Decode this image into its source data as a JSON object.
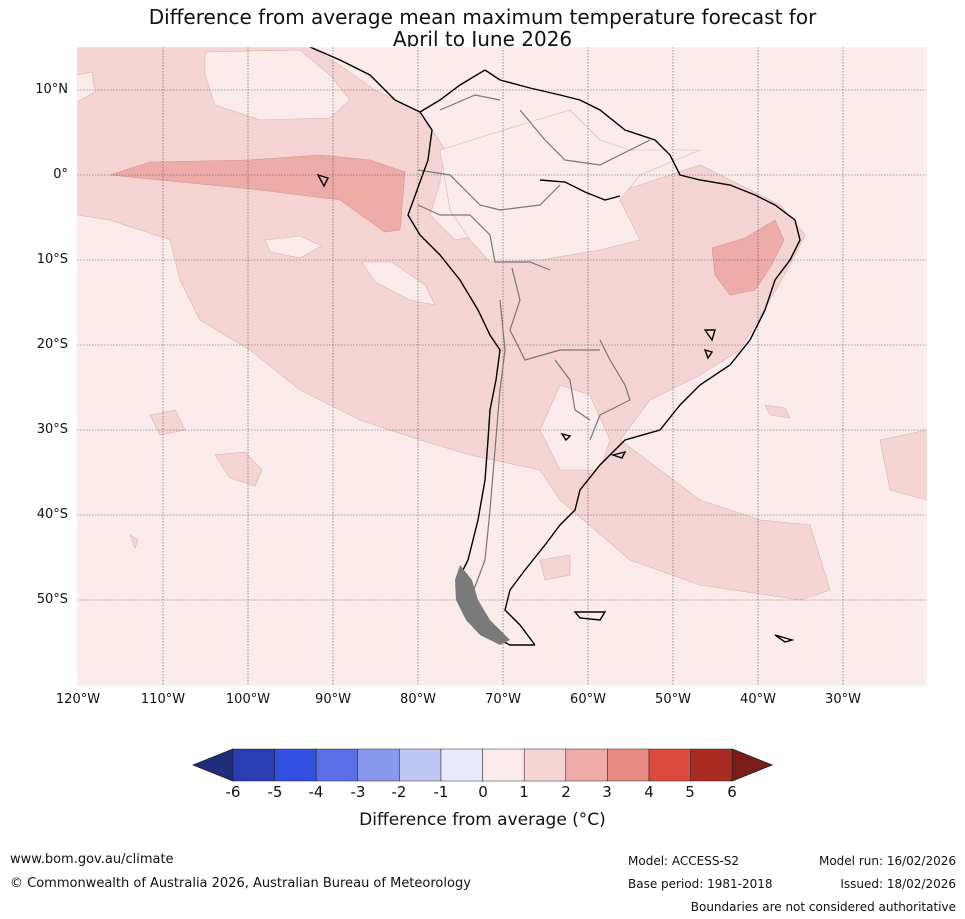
{
  "title": {
    "line1": "Difference from average mean maximum temperature forecast for",
    "line2": "April to June 2026"
  },
  "map": {
    "region": "South America",
    "latitude_labels": [
      "10°N",
      "0°",
      "10°S",
      "20°S",
      "30°S",
      "40°S",
      "50°S"
    ],
    "longitude_labels": [
      "120°W",
      "110°W",
      "100°W",
      "90°W",
      "80°W",
      "70°W",
      "60°W",
      "50°W",
      "40°W",
      "30°W"
    ],
    "dominant_anomaly_range": "0 to 1 °C with patches of 1 to 3 °C"
  },
  "colorbar": {
    "ticks": [
      "-6",
      "-5",
      "-4",
      "-3",
      "-2",
      "-1",
      "0",
      "1",
      "2",
      "3",
      "4",
      "5",
      "6"
    ],
    "colors": [
      "#1f2d7a",
      "#2a3eb1",
      "#3150e0",
      "#5a6fe6",
      "#8898ee",
      "#c0c7f5",
      "#e8ebfb",
      "#fbeceb",
      "#f5d5d3",
      "#edaca8",
      "#e88a82",
      "#dc4a3e",
      "#aa2b22",
      "#7a1d18"
    ],
    "label": "Difference from average (°C)"
  },
  "footer": {
    "url": "www.bom.gov.au/climate",
    "copyright": "© Commonwealth of Australia 2026, Australian Bureau of Meteorology",
    "model": "Model: ACCESS-S2",
    "base_period": "Base period: 1981-2018",
    "model_run": "Model run: 16/02/2026",
    "issued": "Issued: 18/02/2026",
    "disclaimer": "Boundaries are not considered authoritative"
  }
}
